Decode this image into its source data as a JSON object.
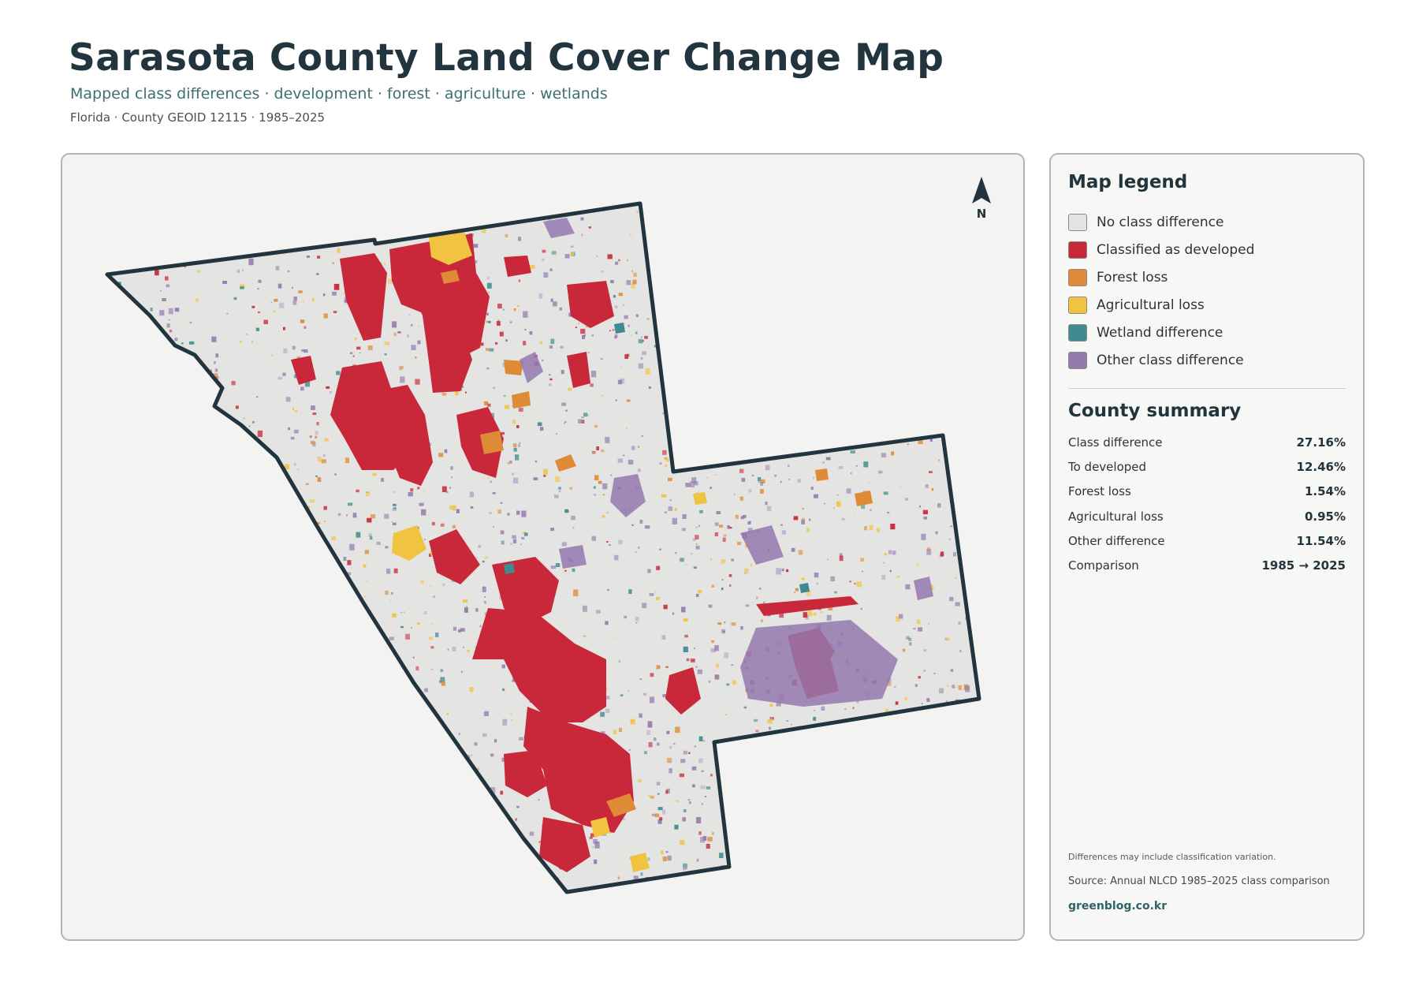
{
  "header": {
    "title": "Sarasota County Land Cover Change Map",
    "subtitle": "Mapped class differences · development · forest · agriculture · wetlands",
    "meta": "Florida · County GEOID 12115 · 1985–2025"
  },
  "map": {
    "north_label": "N",
    "colors": {
      "background": "#e4e5e2",
      "border": "#22343d"
    }
  },
  "legend": {
    "title": "Map legend",
    "items": [
      {
        "label": "No class difference",
        "color": "#e4e4e2"
      },
      {
        "label": "Classified as developed",
        "color": "#c8283a"
      },
      {
        "label": "Forest loss",
        "color": "#df8a36"
      },
      {
        "label": "Agricultural loss",
        "color": "#f0c440"
      },
      {
        "label": "Wetland difference",
        "color": "#3f8b90"
      },
      {
        "label": "Other class difference",
        "color": "#9479ae"
      }
    ]
  },
  "summary": {
    "title": "County summary",
    "rows": [
      {
        "label": "Class difference",
        "value": "27.16%"
      },
      {
        "label": "To developed",
        "value": "12.46%"
      },
      {
        "label": "Forest loss",
        "value": "1.54%"
      },
      {
        "label": "Agricultural loss",
        "value": "0.95%"
      },
      {
        "label": "Other difference",
        "value": "11.54%"
      },
      {
        "label": "Comparison",
        "value": "1985 → 2025"
      }
    ]
  },
  "footer": {
    "note": "Differences may include classification variation.",
    "source": "Source: Annual NLCD 1985–2025 class comparison",
    "site": "greenblog.co.kr"
  }
}
